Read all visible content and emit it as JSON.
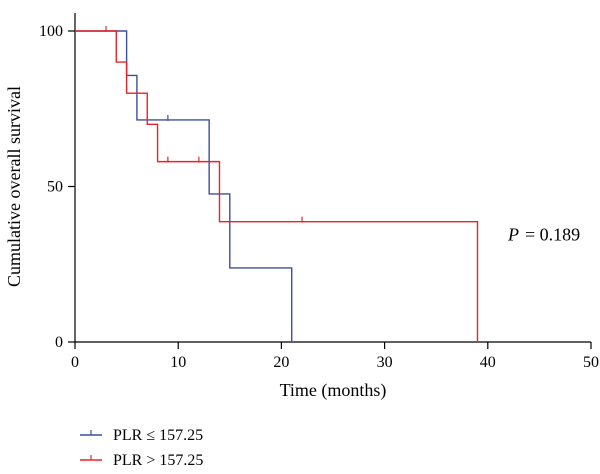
{
  "chart_data": {
    "type": "line",
    "xlabel": "Time (months)",
    "ylabel": "Cumulative overall survival",
    "xlim": [
      0,
      50
    ],
    "ylim": [
      0,
      100
    ],
    "xticks": [
      0,
      10,
      20,
      30,
      40,
      50
    ],
    "yticks": [
      0,
      50,
      100
    ],
    "grid": false,
    "legend_position": "bottom-left",
    "annotation": {
      "p_label": "P",
      "p_value": "= 0.189"
    },
    "series": [
      {
        "name": "PLR ≤ 157.25",
        "color": "#3a4fa0",
        "steps": [
          [
            0,
            100
          ],
          [
            5,
            85.7
          ],
          [
            6,
            71.4
          ],
          [
            13,
            47.6
          ],
          [
            15,
            23.8
          ],
          [
            21,
            0
          ]
        ],
        "end_x": 21,
        "censored": [
          [
            9,
            71.4
          ]
        ]
      },
      {
        "name": "PLR > 157.25",
        "color": "#e8242b",
        "steps": [
          [
            0,
            100
          ],
          [
            4,
            90
          ],
          [
            5,
            80
          ],
          [
            7,
            70
          ],
          [
            8,
            58
          ],
          [
            14,
            38.7
          ],
          [
            39,
            0
          ]
        ],
        "end_x": 39,
        "censored": [
          [
            3,
            100
          ],
          [
            9,
            58
          ],
          [
            12,
            58
          ],
          [
            22,
            38.7
          ]
        ]
      }
    ]
  }
}
